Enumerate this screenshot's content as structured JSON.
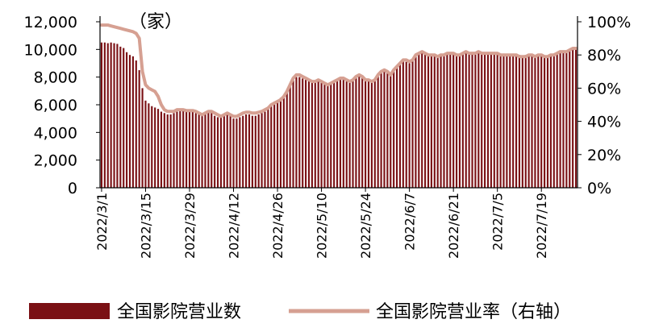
{
  "chart_data": {
    "type": "bar+line",
    "unit_label": "（家）",
    "left_axis": {
      "ylim": [
        0,
        12000
      ],
      "ticks": [
        "0",
        "2,000",
        "4,000",
        "6,000",
        "8,000",
        "10,000",
        "12,000"
      ]
    },
    "right_axis": {
      "ylim": [
        0,
        100
      ],
      "ticks": [
        "0%",
        "20%",
        "40%",
        "60%",
        "80%",
        "100%"
      ]
    },
    "x_tick_labels": [
      "2022/3/1",
      "2022/3/15",
      "2022/3/29",
      "2022/4/12",
      "2022/4/26",
      "2022/5/10",
      "2022/5/24",
      "2022/6/7",
      "2022/6/21",
      "2022/7/5",
      "2022/7/19"
    ],
    "x_tick_index": [
      0,
      14,
      28,
      42,
      56,
      70,
      84,
      98,
      112,
      126,
      140
    ],
    "series": [
      {
        "name": "全国影院营业数",
        "axis": "left",
        "chart": "bar",
        "color": "#7a1014",
        "values": [
          10500,
          10500,
          10450,
          10500,
          10450,
          10400,
          10200,
          10100,
          9800,
          9600,
          9500,
          9200,
          8500,
          7200,
          6300,
          6100,
          5900,
          5800,
          5700,
          5500,
          5400,
          5300,
          5300,
          5400,
          5500,
          5600,
          5600,
          5500,
          5500,
          5500,
          5400,
          5300,
          5300,
          5400,
          5500,
          5400,
          5200,
          5100,
          5100,
          5200,
          5300,
          5200,
          5000,
          5000,
          5100,
          5200,
          5300,
          5300,
          5200,
          5200,
          5300,
          5400,
          5500,
          5700,
          6000,
          6200,
          6300,
          6500,
          6700,
          7000,
          7500,
          7800,
          8000,
          8000,
          7900,
          7800,
          7700,
          7600,
          7600,
          7700,
          7600,
          7500,
          7400,
          7500,
          7600,
          7700,
          7800,
          7800,
          7700,
          7600,
          7700,
          8000,
          8100,
          8000,
          7800,
          7700,
          7600,
          7800,
          8100,
          8300,
          8400,
          8300,
          8100,
          8500,
          8800,
          9000,
          9200,
          9100,
          9000,
          9200,
          9500,
          9700,
          9800,
          9800,
          9700,
          9700,
          9700,
          9600,
          9700,
          9700,
          9800,
          9800,
          9800,
          9700,
          9700,
          9800,
          9900,
          9800,
          9800,
          9800,
          9900,
          9800,
          9800,
          9800,
          9800,
          9800,
          9800,
          9700,
          9700,
          9700,
          9600,
          9700,
          9700,
          9600,
          9500,
          9600,
          9600,
          9600,
          9500,
          9600,
          9600,
          9500,
          9500,
          9600,
          9700,
          9800,
          9900,
          9900,
          9800,
          10000,
          10100,
          10000
        ]
      },
      {
        "name": "全国影院营业率（右轴）",
        "axis": "right",
        "chart": "line",
        "color": "#d6a092",
        "values": [
          98,
          98,
          98,
          97.5,
          97,
          96.5,
          96,
          95.5,
          95,
          94.5,
          94,
          93,
          90,
          70,
          62,
          60,
          59,
          58,
          55,
          50,
          47,
          46,
          46,
          46,
          47,
          47,
          47,
          46.5,
          46.5,
          46.5,
          46,
          45,
          44,
          45,
          46,
          46,
          45,
          44,
          43,
          44,
          45,
          44,
          43,
          43,
          44,
          45,
          45.5,
          45.5,
          45,
          45,
          45.5,
          46,
          47,
          48,
          50,
          51,
          52,
          53,
          55,
          58,
          62,
          66,
          68,
          68,
          67,
          66,
          65,
          64,
          64,
          65,
          64,
          63,
          62,
          63,
          64,
          65,
          66,
          66,
          65,
          64,
          65,
          67,
          68,
          67,
          65,
          65,
          64,
          65,
          68,
          70,
          71,
          70,
          68,
          71,
          73,
          75,
          77,
          77,
          76,
          77,
          80,
          81,
          82,
          81,
          80,
          80,
          80,
          79,
          80,
          80,
          81,
          81,
          81,
          80,
          80,
          81,
          82,
          81,
          81,
          81,
          82,
          81,
          81,
          81,
          81,
          81,
          81,
          80,
          80,
          80,
          80,
          80,
          80,
          79,
          79,
          79,
          80,
          80,
          79,
          80,
          80,
          79,
          79,
          80,
          80,
          81,
          82,
          82,
          82,
          83,
          84,
          84
        ]
      }
    ]
  }
}
